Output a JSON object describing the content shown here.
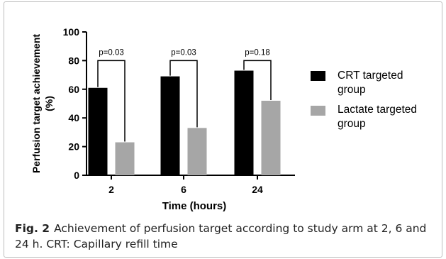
{
  "chart_data": {
    "type": "bar",
    "categories": [
      "2",
      "6",
      "24"
    ],
    "series": [
      {
        "name": "CRT targeted group",
        "values": [
          61,
          69,
          73
        ],
        "color": "#000000"
      },
      {
        "name": "Lactate targeted group",
        "values": [
          23,
          33,
          52
        ],
        "color": "#a6a6a6"
      }
    ],
    "xlabel": "Time  (hours)",
    "ylabel": "Perfusion target achievement (%)",
    "ylim": [
      0,
      100
    ],
    "yticks": [
      0,
      20,
      40,
      60,
      80,
      100
    ],
    "grid": false,
    "legend_position": "right",
    "legend_lines": [
      [
        "CRT targeted",
        "group"
      ],
      [
        "Lactate targeted",
        "group"
      ]
    ],
    "ylabel_lines": [
      "Perfusion target achievement",
      "(%)"
    ],
    "annotations": [
      {
        "category": "2",
        "text": "p=0.03",
        "bracket_y": 80
      },
      {
        "category": "6",
        "text": "p=0.03",
        "bracket_y": 80
      },
      {
        "category": "24",
        "text": "p=0.18",
        "bracket_y": 80
      }
    ]
  },
  "caption": {
    "label": "Fig. 2",
    "text": "Achievement of perfusion target according to study arm at 2, 6 and 24 h. CRT: Capillary refill time"
  }
}
